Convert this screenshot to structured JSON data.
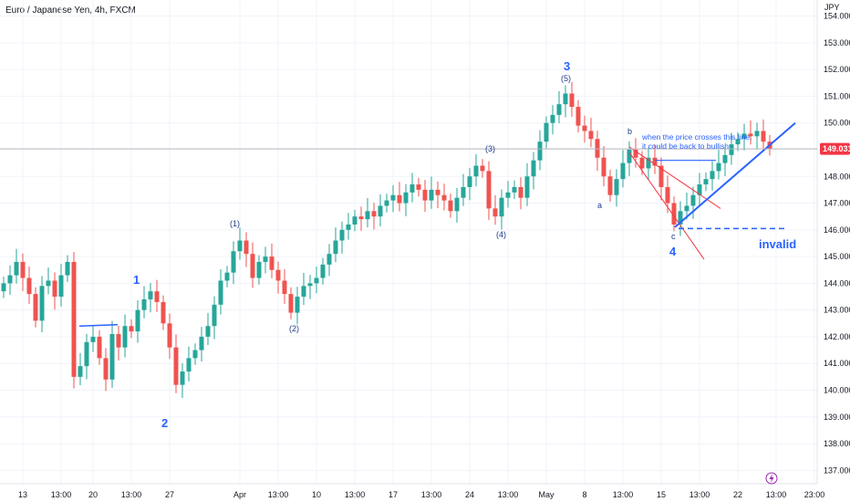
{
  "header": {
    "title": "Euro / Japanese Yen, 4h, FXCM"
  },
  "colors": {
    "up": "#26a69a",
    "down": "#ef5350",
    "accent": "#2962ff",
    "annotation_red": "#f23645",
    "grid": "#f0f3fa",
    "last_price": "#f23645"
  },
  "chart_data": {
    "type": "candlestick",
    "currency_label": "JPY",
    "ylim": [
      136.5,
      154.6
    ],
    "y_ticks": [
      {
        "value": 154,
        "label": "154.000"
      },
      {
        "value": 153,
        "label": "153.000"
      },
      {
        "value": 152,
        "label": "152.000"
      },
      {
        "value": 151,
        "label": "151.000"
      },
      {
        "value": 150,
        "label": "150.000"
      },
      {
        "value": 148,
        "label": "148.000"
      },
      {
        "value": 147,
        "label": "147.000"
      },
      {
        "value": 146,
        "label": "146.000"
      },
      {
        "value": 145,
        "label": "145.000"
      },
      {
        "value": 144,
        "label": "144.000"
      },
      {
        "value": 143,
        "label": "143.000"
      },
      {
        "value": 142,
        "label": "142.000"
      },
      {
        "value": 141,
        "label": "141.000"
      },
      {
        "value": 140,
        "label": "140.000"
      },
      {
        "value": 139,
        "label": "139.000"
      },
      {
        "value": 138,
        "label": "138.000"
      },
      {
        "value": 137,
        "label": "137.000"
      }
    ],
    "x_ticks": [
      {
        "index": 3,
        "label": "13"
      },
      {
        "index": 9,
        "label": "13:00"
      },
      {
        "index": 14,
        "label": "20"
      },
      {
        "index": 20,
        "label": "13:00"
      },
      {
        "index": 26,
        "label": "27"
      },
      {
        "index": 37,
        "label": "Apr"
      },
      {
        "index": 43,
        "label": "13:00"
      },
      {
        "index": 49,
        "label": "10"
      },
      {
        "index": 55,
        "label": "13:00"
      },
      {
        "index": 61,
        "label": "17"
      },
      {
        "index": 67,
        "label": "13:00"
      },
      {
        "index": 73,
        "label": "24"
      },
      {
        "index": 79,
        "label": "13:00"
      },
      {
        "index": 85,
        "label": "May"
      },
      {
        "index": 91,
        "label": "8"
      },
      {
        "index": 97,
        "label": "13:00"
      },
      {
        "index": 103,
        "label": "15"
      },
      {
        "index": 109,
        "label": "13:00"
      },
      {
        "index": 115,
        "label": "22"
      },
      {
        "index": 121,
        "label": "13:00"
      },
      {
        "index": 127,
        "label": "23:00"
      }
    ],
    "last_price": {
      "value": 149.031,
      "label": "149.031"
    },
    "candles_close": [
      144.0,
      144.3,
      144.8,
      144.2,
      143.6,
      142.6,
      143.9,
      144.1,
      143.5,
      144.3,
      144.8,
      140.5,
      140.9,
      141.8,
      142.0,
      141.2,
      140.4,
      142.1,
      141.6,
      142.4,
      142.2,
      143.0,
      143.4,
      143.7,
      143.3,
      142.5,
      141.6,
      140.2,
      140.7,
      141.2,
      141.5,
      142.0,
      142.4,
      143.2,
      144.1,
      144.4,
      145.2,
      145.6,
      145.1,
      144.2,
      144.8,
      145.0,
      144.5,
      144.1,
      143.6,
      142.9,
      143.5,
      143.9,
      144.0,
      144.2,
      144.7,
      145.1,
      145.6,
      146.0,
      146.2,
      146.5,
      146.4,
      146.7,
      146.5,
      146.9,
      147.1,
      147.3,
      147.0,
      147.4,
      147.7,
      147.5,
      147.1,
      147.5,
      147.3,
      147.1,
      146.7,
      147.2,
      147.6,
      148.0,
      148.4,
      148.2,
      146.8,
      146.5,
      147.2,
      147.4,
      147.6,
      147.2,
      148.0,
      148.6,
      149.3,
      150.0,
      150.3,
      150.7,
      151.1,
      150.6,
      149.9,
      149.7,
      149.4,
      148.7,
      148.0,
      147.3,
      147.9,
      148.5,
      149.0,
      148.7,
      148.3,
      148.7,
      148.4,
      147.6,
      147.0,
      146.2,
      146.7,
      146.9,
      147.3,
      147.7,
      147.9,
      148.2,
      148.5,
      148.8,
      149.2,
      149.4,
      149.6,
      149.5,
      149.7,
      149.3,
      149.03
    ],
    "annotations": {
      "big_waves": [
        "1",
        "2",
        "3",
        "4"
      ],
      "sub_waves": [
        "(1)",
        "(2)",
        "(3)",
        "(4)",
        "(5)"
      ],
      "abc": [
        "a",
        "b",
        "c"
      ],
      "note_line1": "when the price crosses this line,",
      "note_line2": "it could be back to bullish",
      "invalid_label": "invalid"
    }
  }
}
